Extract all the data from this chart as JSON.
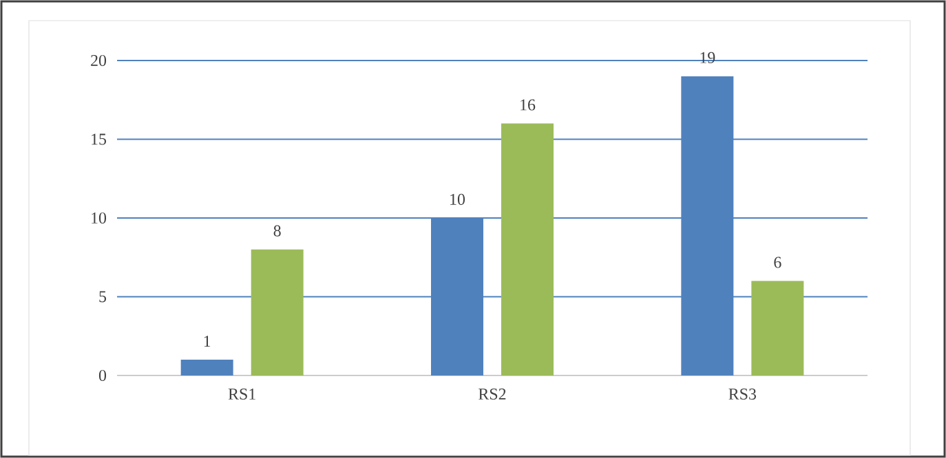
{
  "chart_data": {
    "type": "bar",
    "categories": [
      "RS1",
      "RS2",
      "RS3"
    ],
    "series": [
      {
        "color": "#4f81bd",
        "values": [
          1,
          10,
          19
        ]
      },
      {
        "color": "#9bbb59",
        "values": [
          8,
          16,
          6
        ]
      }
    ],
    "ylim": [
      0,
      20
    ],
    "yticks": [
      0,
      5,
      10,
      15,
      20
    ],
    "grid": "y",
    "data_labels": true
  }
}
